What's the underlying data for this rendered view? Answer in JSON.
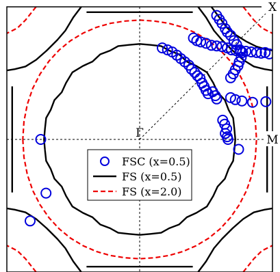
{
  "chart_data": {
    "type": "scatter",
    "labels": {
      "corner": "X",
      "center": "Γ",
      "edge": "M"
    },
    "xlim": [
      -1,
      1
    ],
    "ylim": [
      -1,
      1
    ],
    "grid": false,
    "legend_position": "center",
    "series": [
      {
        "name": "FSC (x=0.5)",
        "kind": "markers",
        "color": "#0000dd",
        "points": [
          [
            0.58,
            0.935
          ],
          [
            0.6,
            0.905
          ],
          [
            0.62,
            0.875
          ],
          [
            0.645,
            0.835
          ],
          [
            0.66,
            0.81
          ],
          [
            0.685,
            0.785
          ],
          [
            0.71,
            0.745
          ],
          [
            0.73,
            0.715
          ],
          [
            0.755,
            0.675
          ],
          [
            0.775,
            0.655
          ],
          [
            0.765,
            0.62
          ],
          [
            0.75,
            0.585
          ],
          [
            0.74,
            0.555
          ],
          [
            0.72,
            0.525
          ],
          [
            0.705,
            0.495
          ],
          [
            0.685,
            0.465
          ],
          [
            0.405,
            0.765
          ],
          [
            0.43,
            0.745
          ],
          [
            0.46,
            0.735
          ],
          [
            0.5,
            0.725
          ],
          [
            0.54,
            0.71
          ],
          [
            0.58,
            0.705
          ],
          [
            0.62,
            0.7
          ],
          [
            0.66,
            0.69
          ],
          [
            0.69,
            0.675
          ],
          [
            0.725,
            0.67
          ],
          [
            0.76,
            0.665
          ],
          [
            0.8,
            0.665
          ],
          [
            0.84,
            0.66
          ],
          [
            0.88,
            0.655
          ],
          [
            0.915,
            0.65
          ],
          [
            0.945,
            0.655
          ],
          [
            0.975,
            0.645
          ],
          [
            0.17,
            0.69
          ],
          [
            0.21,
            0.675
          ],
          [
            0.245,
            0.66
          ],
          [
            0.28,
            0.635
          ],
          [
            0.31,
            0.61
          ],
          [
            0.34,
            0.585
          ],
          [
            0.37,
            0.56
          ],
          [
            0.39,
            0.53
          ],
          [
            0.415,
            0.505
          ],
          [
            0.435,
            0.48
          ],
          [
            0.455,
            0.46
          ],
          [
            0.47,
            0.425
          ],
          [
            0.485,
            0.4
          ],
          [
            0.5,
            0.37
          ],
          [
            0.515,
            0.345
          ],
          [
            0.55,
            0.36
          ],
          [
            0.57,
            0.33
          ],
          [
            0.58,
            0.305
          ],
          [
            0.685,
            0.315
          ],
          [
            0.72,
            0.3
          ],
          [
            0.77,
            0.29
          ],
          [
            0.85,
            0.28
          ],
          [
            0.95,
            0.285
          ],
          [
            0.625,
            0.145
          ],
          [
            0.64,
            0.115
          ],
          [
            0.655,
            0.08
          ],
          [
            0.645,
            0.045
          ],
          [
            0.66,
            0.02
          ],
          [
            0.665,
            0.0
          ],
          [
            0.745,
            -0.075
          ],
          [
            -0.745,
            0.0
          ],
          [
            -0.705,
            -0.405
          ],
          [
            -0.825,
            -0.615
          ]
        ]
      },
      {
        "name": "FS  (x=0.5)",
        "kind": "line",
        "color": "#000000",
        "curves": [
          [
            [
              -0.713,
              -0.081
            ],
            [
              -0.704,
              -0.162
            ],
            [
              -0.67,
              -0.222
            ],
            [
              -0.642,
              -0.297
            ],
            [
              -0.587,
              -0.355
            ],
            [
              -0.554,
              -0.427
            ],
            [
              -0.506,
              -0.506
            ],
            [
              -0.427,
              -0.554
            ],
            [
              -0.355,
              -0.587
            ],
            [
              -0.297,
              -0.642
            ],
            [
              -0.222,
              -0.67
            ],
            [
              -0.162,
              -0.704
            ],
            [
              -0.081,
              -0.713
            ],
            [
              0.0,
              -0.72
            ],
            [
              0.081,
              -0.713
            ],
            [
              0.162,
              -0.704
            ],
            [
              0.222,
              -0.67
            ],
            [
              0.297,
              -0.642
            ],
            [
              0.355,
              -0.587
            ],
            [
              0.427,
              -0.554
            ],
            [
              0.506,
              -0.506
            ],
            [
              0.554,
              -0.427
            ],
            [
              0.587,
              -0.355
            ],
            [
              0.642,
              -0.297
            ],
            [
              0.67,
              -0.222
            ],
            [
              0.704,
              -0.162
            ],
            [
              0.713,
              -0.081
            ],
            [
              0.72,
              0.0
            ],
            [
              0.713,
              0.081
            ],
            [
              0.704,
              0.162
            ],
            [
              0.67,
              0.222
            ],
            [
              0.642,
              0.297
            ],
            [
              0.587,
              0.355
            ],
            [
              0.554,
              0.427
            ],
            [
              0.506,
              0.506
            ],
            [
              0.427,
              0.554
            ],
            [
              0.355,
              0.587
            ],
            [
              0.297,
              0.642
            ],
            [
              0.222,
              0.67
            ],
            [
              0.162,
              0.704
            ],
            [
              0.081,
              0.713
            ],
            [
              0.0,
              0.72
            ],
            [
              -0.081,
              0.713
            ],
            [
              -0.162,
              0.704
            ],
            [
              -0.222,
              0.67
            ],
            [
              -0.297,
              0.642
            ],
            [
              -0.355,
              0.587
            ],
            [
              -0.427,
              0.554
            ],
            [
              -0.506,
              0.506
            ],
            [
              -0.554,
              0.427
            ],
            [
              -0.587,
              0.355
            ],
            [
              -0.642,
              0.297
            ],
            [
              -0.67,
              0.222
            ],
            [
              -0.704,
              0.162
            ],
            [
              -0.713,
              0.081
            ],
            [
              -0.72,
              0.0
            ],
            [
              -0.713,
              -0.081
            ]
          ],
          [
            [
              0.44,
              1.0
            ],
            [
              0.5,
              0.92
            ],
            [
              0.56,
              0.82
            ],
            [
              0.62,
              0.75
            ],
            [
              0.7,
              0.67
            ],
            [
              0.78,
              0.6
            ],
            [
              0.86,
              0.55
            ],
            [
              0.94,
              0.53
            ],
            [
              1.0,
              0.52
            ]
          ],
          [
            [
              -0.44,
              1.0
            ],
            [
              -0.5,
              0.92
            ],
            [
              -0.56,
              0.82
            ],
            [
              -0.62,
              0.75
            ],
            [
              -0.7,
              0.67
            ],
            [
              -0.78,
              0.6
            ],
            [
              -0.86,
              0.55
            ],
            [
              -0.94,
              0.53
            ],
            [
              -1.0,
              0.52
            ]
          ],
          [
            [
              0.44,
              -1.0
            ],
            [
              0.5,
              -0.92
            ],
            [
              0.56,
              -0.82
            ],
            [
              0.62,
              -0.75
            ],
            [
              0.7,
              -0.67
            ],
            [
              0.78,
              -0.6
            ],
            [
              0.86,
              -0.55
            ],
            [
              0.94,
              -0.53
            ],
            [
              1.0,
              -0.52
            ]
          ],
          [
            [
              -0.44,
              -1.0
            ],
            [
              -0.5,
              -0.92
            ],
            [
              -0.56,
              -0.82
            ],
            [
              -0.62,
              -0.75
            ],
            [
              -0.7,
              -0.67
            ],
            [
              -0.78,
              -0.6
            ],
            [
              -0.86,
              -0.55
            ],
            [
              -0.94,
              -0.53
            ],
            [
              -1.0,
              -0.52
            ]
          ],
          [
            [
              0.54,
              1.0
            ],
            [
              0.6,
              0.92
            ],
            [
              0.66,
              0.84
            ],
            [
              0.72,
              0.79
            ],
            [
              0.8,
              0.74
            ],
            [
              0.88,
              0.7
            ],
            [
              0.95,
              0.68
            ],
            [
              1.0,
              0.67
            ]
          ],
          [
            [
              0.96,
              0.4
            ],
            [
              0.96,
              -0.4
            ]
          ],
          [
            [
              -0.96,
              0.4
            ],
            [
              -0.96,
              -0.4
            ]
          ],
          [
            [
              -0.4,
              0.96
            ],
            [
              0.4,
              0.96
            ]
          ],
          [
            [
              -0.4,
              -0.96
            ],
            [
              0.4,
              -0.96
            ]
          ]
        ]
      },
      {
        "name": "FS  (x=2.0)",
        "kind": "dashed-line",
        "color": "#ee0000",
        "curves": [
          [
            [
              -0.88,
              0.0
            ],
            [
              -0.871,
              -0.135
            ],
            [
              -0.846,
              -0.265
            ],
            [
              -0.805,
              -0.385
            ],
            [
              -0.75,
              -0.493
            ],
            [
              -0.683,
              -0.59
            ],
            [
              -0.606,
              -0.674
            ],
            [
              -0.52,
              -0.745
            ],
            [
              -0.425,
              -0.802
            ],
            [
              -0.324,
              -0.846
            ],
            [
              -0.219,
              -0.876
            ],
            [
              -0.11,
              -0.893
            ],
            [
              0.0,
              -0.9
            ],
            [
              0.11,
              -0.893
            ],
            [
              0.219,
              -0.876
            ],
            [
              0.324,
              -0.846
            ],
            [
              0.425,
              -0.802
            ],
            [
              0.52,
              -0.745
            ],
            [
              0.606,
              -0.674
            ],
            [
              0.683,
              -0.59
            ],
            [
              0.75,
              -0.493
            ],
            [
              0.805,
              -0.385
            ],
            [
              0.846,
              -0.265
            ],
            [
              0.871,
              -0.135
            ],
            [
              0.88,
              0.0
            ],
            [
              0.871,
              0.135
            ],
            [
              0.846,
              0.265
            ],
            [
              0.805,
              0.385
            ],
            [
              0.75,
              0.493
            ],
            [
              0.683,
              0.59
            ],
            [
              0.606,
              0.674
            ],
            [
              0.52,
              0.745
            ],
            [
              0.425,
              0.802
            ],
            [
              0.324,
              0.846
            ],
            [
              0.219,
              0.876
            ],
            [
              0.11,
              0.893
            ],
            [
              0.0,
              0.9
            ],
            [
              -0.11,
              0.893
            ],
            [
              -0.219,
              0.876
            ],
            [
              -0.324,
              0.846
            ],
            [
              -0.425,
              0.802
            ],
            [
              -0.52,
              0.745
            ],
            [
              -0.606,
              0.674
            ],
            [
              -0.683,
              0.59
            ],
            [
              -0.75,
              0.493
            ],
            [
              -0.805,
              0.385
            ],
            [
              -0.846,
              0.265
            ],
            [
              -0.871,
              0.135
            ],
            [
              -0.88,
              0.0
            ]
          ],
          [
            [
              0.78,
              1.0
            ],
            [
              0.86,
              0.9
            ],
            [
              0.92,
              0.84
            ],
            [
              1.0,
              0.8
            ]
          ],
          [
            [
              -0.78,
              1.0
            ],
            [
              -0.86,
              0.9
            ],
            [
              -0.92,
              0.84
            ],
            [
              -1.0,
              0.8
            ]
          ],
          [
            [
              0.78,
              -1.0
            ],
            [
              0.86,
              -0.9
            ],
            [
              0.92,
              -0.84
            ],
            [
              1.0,
              -0.8
            ]
          ],
          [
            [
              -0.78,
              -1.0
            ],
            [
              -0.86,
              -0.9
            ],
            [
              -0.92,
              -0.84
            ],
            [
              -1.0,
              -0.8
            ]
          ]
        ]
      }
    ]
  }
}
